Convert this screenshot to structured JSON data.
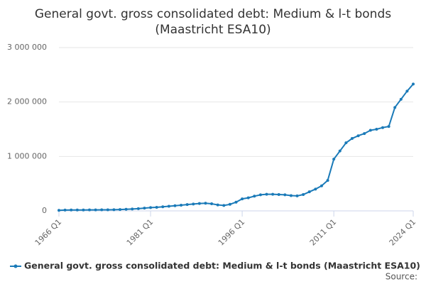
{
  "chart_data": {
    "type": "line",
    "title": [
      "General govt. gross consolidated debt: Medium & l-t bonds",
      "(Maastricht ESA10)"
    ],
    "categories": [
      "1966 Q1",
      null,
      null,
      null,
      null,
      null,
      null,
      null,
      null,
      null,
      null,
      null,
      null,
      null,
      null,
      "1981 Q1",
      null,
      null,
      null,
      null,
      null,
      null,
      null,
      null,
      null,
      null,
      null,
      null,
      null,
      null,
      "1996 Q1",
      null,
      null,
      null,
      null,
      null,
      null,
      null,
      null,
      null,
      null,
      null,
      null,
      null,
      null,
      "2011 Q1",
      null,
      null,
      null,
      null,
      null,
      null,
      null,
      null,
      null,
      null,
      null,
      null,
      "2024 Q1"
    ],
    "series": [
      {
        "name": "General govt. gross consolidated debt: Medium & l-t bonds (Maastricht ESA10)",
        "color": "#1a7ab8",
        "values": [
          10000,
          15000,
          16000,
          17000,
          17000,
          18000,
          18000,
          19000,
          20000,
          22000,
          25000,
          30000,
          35000,
          40000,
          50000,
          60000,
          65000,
          75000,
          85000,
          95000,
          105000,
          115000,
          125000,
          135000,
          140000,
          130000,
          110000,
          100000,
          120000,
          160000,
          220000,
          240000,
          270000,
          295000,
          305000,
          305000,
          300000,
          295000,
          280000,
          275000,
          300000,
          350000,
          400000,
          460000,
          560000,
          950000,
          1100000,
          1250000,
          1330000,
          1380000,
          1420000,
          1480000,
          1500000,
          1530000,
          1550000,
          1900000,
          2050000,
          2200000,
          2330000
        ]
      }
    ],
    "ylim": [
      0,
      3000000
    ],
    "yticks": [
      0,
      {
        "value": 1000000,
        "label": "1 000 000"
      },
      {
        "value": 2000000,
        "label": "2 000 000"
      },
      {
        "value": 3000000,
        "label": "3 000 000"
      }
    ],
    "grid": true,
    "source": "Source:"
  }
}
